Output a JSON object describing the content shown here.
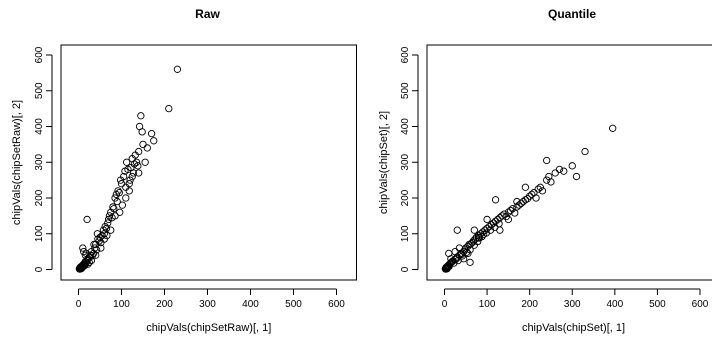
{
  "chart_data": [
    {
      "type": "scatter",
      "title": "Raw",
      "xlabel": "chipVals(chipSetRaw)[, 1]",
      "ylabel": "chipVals(chipSetRaw)[, 2]",
      "xlim": [
        0,
        600
      ],
      "ylim": [
        0,
        600
      ],
      "xticks": [
        0,
        100,
        200,
        300,
        400,
        500,
        600
      ],
      "yticks": [
        0,
        100,
        200,
        300,
        400,
        500,
        600
      ],
      "marker": "open-circle",
      "points": [
        [
          2,
          2
        ],
        [
          3,
          4
        ],
        [
          4,
          6
        ],
        [
          5,
          3
        ],
        [
          6,
          8
        ],
        [
          7,
          5
        ],
        [
          8,
          10
        ],
        [
          10,
          12
        ],
        [
          12,
          15
        ],
        [
          9,
          7
        ],
        [
          11,
          9
        ],
        [
          3,
          1
        ],
        [
          5,
          5
        ],
        [
          6,
          2
        ],
        [
          8,
          4
        ],
        [
          14,
          18
        ],
        [
          16,
          22
        ],
        [
          18,
          20
        ],
        [
          20,
          26
        ],
        [
          15,
          12
        ],
        [
          13,
          10
        ],
        [
          22,
          30
        ],
        [
          25,
          35
        ],
        [
          28,
          40
        ],
        [
          30,
          50
        ],
        [
          32,
          38
        ],
        [
          35,
          45
        ],
        [
          38,
          60
        ],
        [
          40,
          70
        ],
        [
          42,
          55
        ],
        [
          45,
          85
        ],
        [
          48,
          80
        ],
        [
          50,
          90
        ],
        [
          52,
          75
        ],
        [
          55,
          95
        ],
        [
          58,
          110
        ],
        [
          60,
          100
        ],
        [
          62,
          120
        ],
        [
          65,
          115
        ],
        [
          68,
          130
        ],
        [
          70,
          140
        ],
        [
          72,
          150
        ],
        [
          75,
          160
        ],
        [
          78,
          145
        ],
        [
          80,
          175
        ],
        [
          82,
          170
        ],
        [
          85,
          200
        ],
        [
          88,
          210
        ],
        [
          90,
          190
        ],
        [
          92,
          220
        ],
        [
          95,
          215
        ],
        [
          98,
          250
        ],
        [
          100,
          240
        ],
        [
          102,
          180
        ],
        [
          105,
          260
        ],
        [
          108,
          275
        ],
        [
          110,
          230
        ],
        [
          112,
          300
        ],
        [
          115,
          280
        ],
        [
          118,
          220
        ],
        [
          120,
          250
        ],
        [
          122,
          285
        ],
        [
          125,
          310
        ],
        [
          128,
          270
        ],
        [
          130,
          295
        ],
        [
          132,
          320
        ],
        [
          135,
          300
        ],
        [
          138,
          290
        ],
        [
          140,
          330
        ],
        [
          142,
          400
        ],
        [
          145,
          430
        ],
        [
          148,
          385
        ],
        [
          150,
          350
        ],
        [
          155,
          300
        ],
        [
          160,
          340
        ],
        [
          170,
          380
        ],
        [
          175,
          360
        ],
        [
          210,
          450
        ],
        [
          230,
          560
        ],
        [
          20,
          140
        ],
        [
          10,
          60
        ],
        [
          12,
          50
        ],
        [
          18,
          45
        ],
        [
          25,
          20
        ],
        [
          30,
          25
        ],
        [
          36,
          70
        ],
        [
          44,
          100
        ],
        [
          52,
          60
        ],
        [
          60,
          85
        ],
        [
          66,
          95
        ],
        [
          75,
          110
        ],
        [
          85,
          150
        ],
        [
          96,
          160
        ],
        [
          110,
          200
        ],
        [
          118,
          240
        ],
        [
          125,
          260
        ],
        [
          140,
          270
        ],
        [
          16,
          40
        ],
        [
          22,
          15
        ],
        [
          40,
          40
        ]
      ]
    },
    {
      "type": "scatter",
      "title": "Quantile",
      "xlabel": "chipVals(chipSet)[, 1]",
      "ylabel": "chipVals(chipSet)[, 2]",
      "xlim": [
        0,
        600
      ],
      "ylim": [
        0,
        600
      ],
      "xticks": [
        0,
        100,
        200,
        300,
        400,
        500,
        600
      ],
      "yticks": [
        0,
        100,
        200,
        300,
        400,
        500,
        600
      ],
      "marker": "open-circle",
      "points": [
        [
          2,
          2
        ],
        [
          3,
          4
        ],
        [
          4,
          6
        ],
        [
          5,
          3
        ],
        [
          6,
          8
        ],
        [
          7,
          5
        ],
        [
          8,
          10
        ],
        [
          10,
          12
        ],
        [
          12,
          15
        ],
        [
          9,
          7
        ],
        [
          11,
          9
        ],
        [
          3,
          1
        ],
        [
          5,
          5
        ],
        [
          6,
          2
        ],
        [
          14,
          18
        ],
        [
          16,
          20
        ],
        [
          18,
          22
        ],
        [
          20,
          24
        ],
        [
          22,
          18
        ],
        [
          25,
          28
        ],
        [
          28,
          30
        ],
        [
          30,
          35
        ],
        [
          32,
          25
        ],
        [
          35,
          40
        ],
        [
          38,
          45
        ],
        [
          40,
          42
        ],
        [
          42,
          38
        ],
        [
          45,
          50
        ],
        [
          48,
          55
        ],
        [
          50,
          60
        ],
        [
          52,
          48
        ],
        [
          55,
          65
        ],
        [
          58,
          70
        ],
        [
          60,
          55
        ],
        [
          62,
          72
        ],
        [
          65,
          75
        ],
        [
          68,
          80
        ],
        [
          70,
          68
        ],
        [
          72,
          85
        ],
        [
          75,
          90
        ],
        [
          78,
          78
        ],
        [
          80,
          95
        ],
        [
          82,
          88
        ],
        [
          85,
          100
        ],
        [
          88,
          92
        ],
        [
          90,
          105
        ],
        [
          92,
          98
        ],
        [
          95,
          110
        ],
        [
          98,
          102
        ],
        [
          100,
          115
        ],
        [
          105,
          120
        ],
        [
          108,
          110
        ],
        [
          110,
          125
        ],
        [
          115,
          130
        ],
        [
          118,
          118
        ],
        [
          120,
          135
        ],
        [
          125,
          140
        ],
        [
          128,
          128
        ],
        [
          130,
          145
        ],
        [
          135,
          150
        ],
        [
          140,
          155
        ],
        [
          145,
          148
        ],
        [
          150,
          160
        ],
        [
          155,
          165
        ],
        [
          160,
          170
        ],
        [
          165,
          158
        ],
        [
          170,
          175
        ],
        [
          175,
          180
        ],
        [
          180,
          185
        ],
        [
          185,
          190
        ],
        [
          190,
          195
        ],
        [
          195,
          198
        ],
        [
          200,
          205
        ],
        [
          205,
          210
        ],
        [
          210,
          215
        ],
        [
          215,
          200
        ],
        [
          220,
          225
        ],
        [
          225,
          230
        ],
        [
          230,
          220
        ],
        [
          240,
          250
        ],
        [
          245,
          260
        ],
        [
          250,
          245
        ],
        [
          260,
          270
        ],
        [
          270,
          280
        ],
        [
          280,
          275
        ],
        [
          300,
          290
        ],
        [
          310,
          260
        ],
        [
          330,
          330
        ],
        [
          240,
          305
        ],
        [
          120,
          195
        ],
        [
          30,
          110
        ],
        [
          10,
          45
        ],
        [
          15,
          30
        ],
        [
          25,
          50
        ],
        [
          35,
          60
        ],
        [
          45,
          30
        ],
        [
          55,
          45
        ],
        [
          60,
          20
        ],
        [
          70,
          110
        ],
        [
          80,
          90
        ],
        [
          100,
          140
        ],
        [
          130,
          110
        ],
        [
          150,
          140
        ],
        [
          170,
          190
        ],
        [
          190,
          230
        ],
        [
          395,
          395
        ]
      ]
    }
  ]
}
